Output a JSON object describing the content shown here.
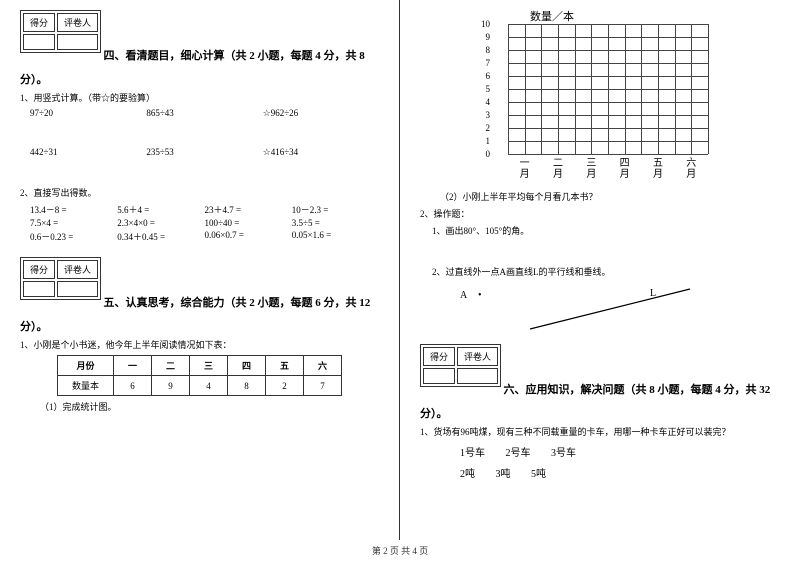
{
  "scoreBox": {
    "col1": "得分",
    "col2": "评卷人"
  },
  "section4": {
    "title": "四、看清题目，细心计算（共 2 小题，每题 4 分，共 8",
    "titleCont": "分）。",
    "q1": "1、用竖式计算。（带☆的要验算）",
    "row1": {
      "a": "97÷20",
      "b": "865÷43",
      "c": "☆962÷26"
    },
    "row2": {
      "a": "442÷31",
      "b": "235÷53",
      "c": "☆416÷34"
    },
    "q2": "2、直接写出得数。",
    "oral1": {
      "a": "13.4－8 =",
      "b": "5.6＋4 =",
      "c": "23＋4.7 =",
      "d": "10－2.3 ="
    },
    "oral2": {
      "a": "7.5×4 =",
      "b": "2.3×4×0 =",
      "c": "100÷40 =",
      "d": "3.5÷5 ="
    },
    "oral3": {
      "a": "0.6－0.23 =",
      "b": "0.34＋0.45 =",
      "c": "0.06×0.7 =",
      "d": "0.05×1.6 ="
    }
  },
  "section5": {
    "title": "五、认真思考，综合能力（共 2 小题，每题 6 分，共 12",
    "titleCont": "分）。",
    "q1": "1、小刚是个小书迷，他今年上半年阅读情况如下表：",
    "tableHeader": {
      "month": "月份",
      "m1": "一",
      "m2": "二",
      "m3": "三",
      "m4": "四",
      "m5": "五",
      "m6": "六"
    },
    "tableRow": {
      "label": "数量本",
      "v1": "6",
      "v2": "9",
      "v3": "4",
      "v4": "8",
      "v5": "2",
      "v6": "7"
    },
    "sub1": "（1）完成统计图。",
    "chartTitle": "数量／本",
    "yLabels": [
      "10",
      "9",
      "8",
      "7",
      "6",
      "5",
      "4",
      "3",
      "2",
      "1",
      "0"
    ],
    "xLabels": [
      {
        "top": "一",
        "bot": "月"
      },
      {
        "top": "二",
        "bot": "月"
      },
      {
        "top": "三",
        "bot": "月"
      },
      {
        "top": "四",
        "bot": "月"
      },
      {
        "top": "五",
        "bot": "月"
      },
      {
        "top": "六",
        "bot": "月"
      }
    ],
    "sub2": "（2）小刚上半年平均每个月看几本书？",
    "q2": "2、操作题：",
    "q2a": "1、画出80°、105°的角。",
    "q2b": "2、过直线外一点A画直线L的平行线和垂线。",
    "pointA": "A",
    "dot": "•",
    "lineL": "L"
  },
  "section6": {
    "title": "六、应用知识，解决问题（共 8 小题，每题 4 分，共 32",
    "titleCont": "分）。",
    "q1": "1、货场有96吨煤，现有三种不同载重量的卡车，用哪一种卡车正好可以装完？",
    "trucks": {
      "t1": "1号车",
      "t2": "2号车",
      "t3": "3号车"
    },
    "weights": {
      "w1": "2吨",
      "w2": "3吨",
      "w3": "5吨"
    }
  },
  "footer": "第 2 页 共 4 页"
}
